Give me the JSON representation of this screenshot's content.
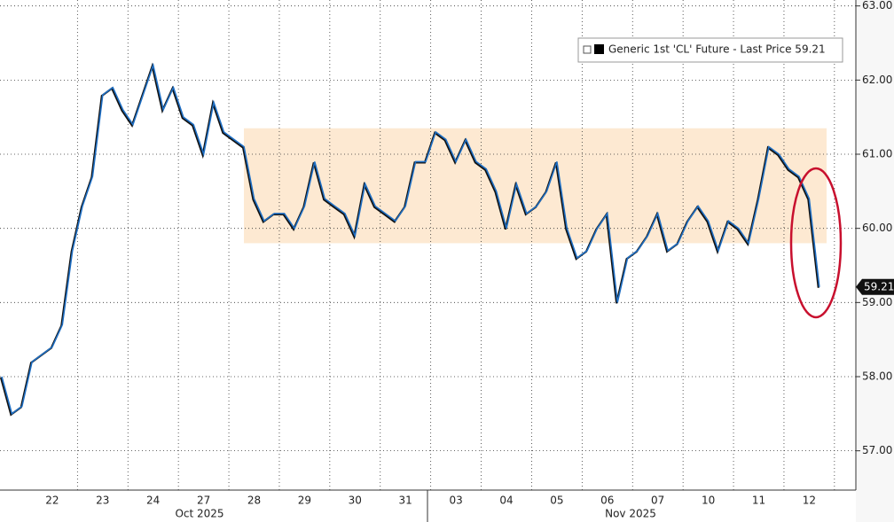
{
  "chart_data": {
    "type": "line",
    "categories": [
      null,
      null,
      null,
      null,
      null,
      "22",
      null,
      null,
      null,
      null,
      "23",
      null,
      null,
      null,
      null,
      "24",
      null,
      null,
      null,
      null,
      "27",
      null,
      null,
      null,
      null,
      "28",
      null,
      null,
      null,
      null,
      "29",
      null,
      null,
      null,
      null,
      "30",
      null,
      null,
      null,
      null,
      "31",
      null,
      null,
      null,
      null,
      "03",
      null,
      null,
      null,
      null,
      "04",
      null,
      null,
      null,
      null,
      "05",
      null,
      null,
      null,
      null,
      "06",
      null,
      null,
      null,
      null,
      "07",
      null,
      null,
      null,
      null,
      "10",
      null,
      null,
      null,
      null,
      "11",
      null,
      null,
      null,
      null,
      "12",
      null,
      null,
      null,
      null
    ],
    "series": [
      {
        "name": "Generic 1st 'CL' Future - Last Price 59.21",
        "color": "#1f6fc4",
        "values": [
          58.0,
          57.5,
          57.6,
          58.2,
          58.3,
          58.4,
          58.7,
          59.7,
          60.3,
          60.7,
          61.8,
          61.9,
          61.6,
          61.4,
          61.8,
          62.2,
          61.6,
          61.9,
          61.5,
          61.4,
          61.0,
          61.7,
          61.3,
          61.2,
          61.1,
          60.4,
          60.1,
          60.2,
          60.2,
          60.0,
          60.3,
          60.9,
          60.4,
          60.3,
          60.2,
          59.9,
          60.6,
          60.3,
          60.2,
          60.1,
          60.3,
          60.9,
          60.9,
          61.3,
          61.2,
          60.9,
          61.2,
          60.9,
          60.8,
          60.5,
          60.0,
          60.6,
          60.2,
          60.3,
          60.5,
          60.9,
          60.0,
          59.6,
          59.7,
          60.0,
          60.2,
          59.0,
          59.6,
          59.7,
          59.9,
          60.2,
          59.7,
          59.8,
          60.1,
          60.3,
          60.1,
          59.7,
          60.1,
          60.0,
          59.8,
          60.4,
          61.1,
          61.0,
          60.8,
          60.7,
          60.4,
          59.21,
          null,
          null,
          null
        ]
      }
    ],
    "last_price": {
      "value": 59.21,
      "label": "59.21"
    },
    "highlight": {
      "y": [
        59.8,
        61.35
      ],
      "color": "#fde9d2"
    },
    "x_group_labels": [
      "Oct 2025",
      "Nov 2025"
    ],
    "ylim": [
      56.47,
      63.08
    ],
    "yticks": [
      {
        "value": 57,
        "label": "57.00"
      },
      {
        "value": 58,
        "label": "58.00"
      },
      {
        "value": 59,
        "label": "59.00"
      },
      {
        "value": 60,
        "label": "60.00"
      },
      {
        "value": 61,
        "label": "61.00"
      },
      {
        "value": 62,
        "label": "62.00"
      },
      {
        "value": 63,
        "label": "63.00"
      }
    ],
    "grid": true,
    "legend": "top-right"
  }
}
